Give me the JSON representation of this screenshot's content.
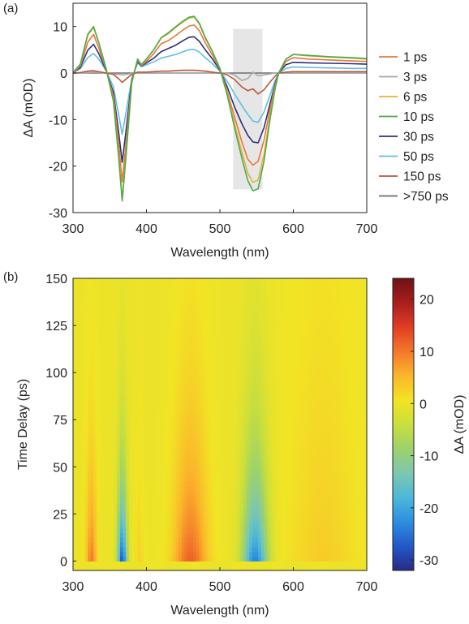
{
  "chart_data": [
    {
      "panel_label": "(a)",
      "type": "line",
      "xlabel": "Wavelength (nm)",
      "ylabel": "ΔA (mOD)",
      "xlim": [
        300,
        700
      ],
      "ylim": [
        -30,
        15
      ],
      "xticks": [
        300,
        400,
        500,
        600,
        700
      ],
      "yticks": [
        -30,
        -20,
        -10,
        0,
        10
      ],
      "grid": false,
      "legend_position": "right",
      "highlight_band": {
        "x": [
          518,
          558
        ],
        "color": "#e6e6e6"
      },
      "x": [
        300,
        310,
        320,
        328,
        335,
        345,
        355,
        362,
        367,
        372,
        380,
        388,
        393,
        400,
        410,
        420,
        430,
        440,
        450,
        458,
        465,
        472,
        480,
        490,
        500,
        510,
        520,
        530,
        538,
        545,
        552,
        560,
        568,
        575,
        580,
        590,
        600,
        620,
        650,
        680,
        700
      ],
      "series": [
        {
          "name": "1 ps",
          "color": "#e8763a",
          "values": [
            0.1,
            1.5,
            6.6,
            8.3,
            5.4,
            0.8,
            -5.0,
            -14.7,
            -23.4,
            -15.3,
            -1.8,
            2.8,
            1.6,
            2.5,
            4.2,
            6.3,
            7.0,
            8.1,
            9.3,
            10.1,
            10.3,
            9.1,
            6.5,
            3.8,
            0.8,
            -4.0,
            -9.5,
            -14.8,
            -18.5,
            -19.8,
            -19.0,
            -14.5,
            -8.0,
            -2.8,
            0.0,
            2.5,
            3.3,
            3.0,
            2.8,
            2.6,
            2.5
          ]
        },
        {
          "name": "3 ps",
          "color": "#a8a8a8",
          "values": [
            0,
            0,
            0.1,
            0.2,
            0.1,
            0,
            -0.2,
            -0.3,
            -0.4,
            -0.3,
            -0.1,
            0,
            0,
            0,
            0,
            0,
            0,
            0,
            0,
            0,
            0,
            0,
            0,
            0,
            0,
            0,
            -0.4,
            -1.6,
            -1.2,
            0.2,
            -0.6,
            -0.4,
            -0.2,
            0,
            0,
            0,
            0,
            0,
            0,
            0,
            0
          ]
        },
        {
          "name": "6 ps",
          "color": "#e2b33a",
          "values": [
            0.1,
            1.8,
            8.1,
            9.8,
            6.5,
            1.0,
            -6.0,
            -17.5,
            -27.0,
            -17.8,
            -2.0,
            3.0,
            1.8,
            3.0,
            5.0,
            7.5,
            8.5,
            9.8,
            11.0,
            11.8,
            12.0,
            10.5,
            7.5,
            4.5,
            1.0,
            -4.5,
            -11.0,
            -17.0,
            -21.5,
            -23.5,
            -23.0,
            -17.5,
            -9.5,
            -3.2,
            0.0,
            3.0,
            4.0,
            3.7,
            3.4,
            3.2,
            3.0
          ]
        },
        {
          "name": "10 ps",
          "color": "#4faa4a",
          "values": [
            0.1,
            1.9,
            8.3,
            10.0,
            6.6,
            1.0,
            -6.1,
            -17.9,
            -27.5,
            -18.1,
            -2.0,
            3.0,
            1.8,
            3.0,
            5.0,
            7.6,
            8.7,
            10.0,
            11.2,
            12.0,
            12.2,
            10.7,
            7.7,
            4.6,
            1.0,
            -4.8,
            -11.8,
            -18.3,
            -23.1,
            -25.3,
            -24.9,
            -19.0,
            -10.3,
            -3.5,
            0.0,
            3.0,
            4.0,
            3.8,
            3.5,
            3.3,
            3.1
          ]
        },
        {
          "name": "30 ps",
          "color": "#2e2e7c",
          "values": [
            0.1,
            1.2,
            4.9,
            6.2,
            4.2,
            0.6,
            -4.2,
            -12.5,
            -19.2,
            -12.6,
            -1.5,
            2.5,
            1.5,
            2.2,
            3.2,
            4.6,
            5.3,
            6.0,
            7.0,
            7.7,
            7.8,
            6.8,
            5.0,
            3.0,
            0.6,
            -3.0,
            -7.3,
            -10.9,
            -13.4,
            -14.8,
            -15.0,
            -11.8,
            -6.8,
            -2.4,
            0.0,
            1.8,
            2.3,
            2.2,
            2.1,
            2.0,
            1.9
          ]
        },
        {
          "name": "50 ps",
          "color": "#5fbfe1",
          "values": [
            0.1,
            0.9,
            3.3,
            4.2,
            3.0,
            0.5,
            -3.0,
            -8.8,
            -13.2,
            -8.6,
            -1.2,
            2.2,
            1.4,
            1.8,
            2.4,
            3.2,
            3.6,
            4.0,
            4.6,
            5.0,
            5.1,
            4.5,
            3.3,
            2.0,
            0.4,
            -1.8,
            -4.5,
            -7.0,
            -8.9,
            -10.3,
            -10.6,
            -8.4,
            -4.9,
            -1.7,
            0.0,
            1.0,
            1.3,
            1.2,
            1.1,
            1.0,
            1.0
          ]
        },
        {
          "name": "150 ps",
          "color": "#b8583a",
          "values": [
            0,
            0.1,
            0.4,
            0.5,
            0.3,
            0,
            -0.3,
            -1.2,
            -2.0,
            -1.3,
            -0.3,
            0.2,
            0.2,
            0.2,
            0.3,
            0.4,
            0.4,
            0.5,
            0.6,
            0.6,
            0.6,
            0.5,
            0.4,
            0.2,
            0,
            -0.4,
            -1.4,
            -3.0,
            -3.8,
            -3.4,
            -4.5,
            -3.6,
            -2.0,
            -0.7,
            0.0,
            0.2,
            0.3,
            0.3,
            0.3,
            0.3,
            0.3
          ]
        },
        {
          "name": ">750 ps",
          "color": "#6e6e6e",
          "values": [
            0,
            0,
            0,
            0,
            0,
            0,
            0,
            0,
            0,
            0,
            0,
            0,
            0,
            0,
            0,
            0,
            0,
            0,
            0,
            0,
            0,
            0,
            0,
            0,
            0,
            0,
            0,
            0,
            0,
            0,
            0,
            0,
            0,
            0,
            0,
            0,
            0,
            0,
            0,
            0,
            0
          ]
        }
      ]
    },
    {
      "panel_label": "(b)",
      "type": "heatmap",
      "xlabel": "Wavelength (nm)",
      "ylabel": "Time Delay (ps)",
      "xlim": [
        300,
        700
      ],
      "ylim": [
        -5,
        150
      ],
      "xticks": [
        300,
        400,
        500,
        600,
        700
      ],
      "yticks": [
        0,
        25,
        50,
        75,
        100,
        125,
        150
      ],
      "colorbar": {
        "label": "ΔA (mOD)",
        "range": [
          -32,
          24
        ],
        "ticks": [
          -30,
          -20,
          -10,
          0,
          10,
          20
        ],
        "colors": [
          "#282a86",
          "#2358c7",
          "#2b8fe0",
          "#4fb8d8",
          "#7cc7b0",
          "#9ed26a",
          "#c9df3c",
          "#f2e425",
          "#fbb52a",
          "#f3782a",
          "#e23c24",
          "#a81e1e",
          "#6e1214"
        ]
      },
      "bands": [
        {
          "center": 325,
          "width": 7,
          "amplitude": 10,
          "tau": 45
        },
        {
          "center": 367,
          "width": 6.5,
          "amplitude": -28,
          "tau": 40
        },
        {
          "center": 390,
          "width": 6,
          "amplitude": 2.5,
          "tau": 40
        },
        {
          "center": 460,
          "width": 22,
          "amplitude": 12,
          "tau": 60
        },
        {
          "center": 548,
          "width": 17,
          "amplitude": -24,
          "tau": 50
        },
        {
          "center": 640,
          "width": 45,
          "amplitude": 3,
          "tau": 140
        }
      ]
    }
  ]
}
